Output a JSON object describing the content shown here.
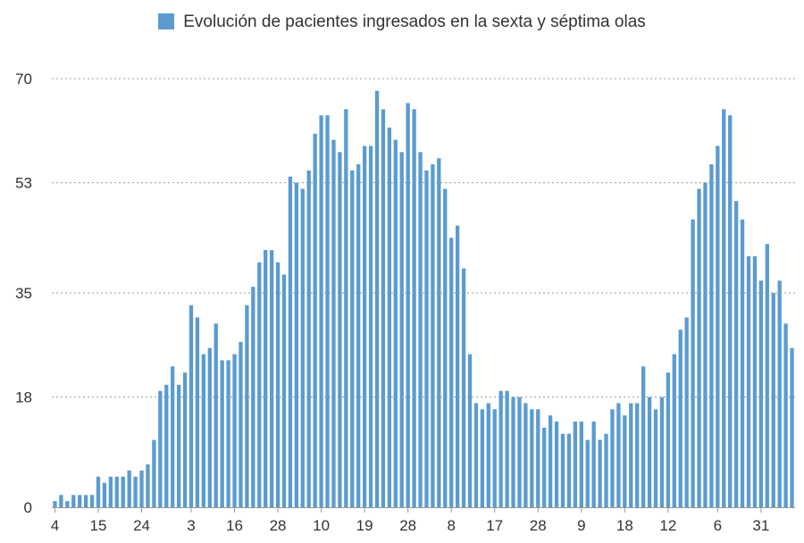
{
  "chart_data": {
    "type": "bar",
    "legend": "Evolución de pacientes ingresados en la sexta y séptima olas",
    "series_color": "#5b9bd0",
    "y_ticks": [
      0,
      18,
      35,
      53,
      70
    ],
    "ylim": [
      0,
      70
    ],
    "x_ticks": [
      {
        "index": 0,
        "label": "4"
      },
      {
        "index": 7,
        "label": "15"
      },
      {
        "index": 14,
        "label": "24"
      },
      {
        "index": 22,
        "label": "3"
      },
      {
        "index": 29,
        "label": "16"
      },
      {
        "index": 36,
        "label": "28"
      },
      {
        "index": 43,
        "label": "10"
      },
      {
        "index": 50,
        "label": "19"
      },
      {
        "index": 57,
        "label": "28"
      },
      {
        "index": 64,
        "label": "8"
      },
      {
        "index": 71,
        "label": "17"
      },
      {
        "index": 78,
        "label": "28"
      },
      {
        "index": 85,
        "label": "9"
      },
      {
        "index": 92,
        "label": "18"
      },
      {
        "index": 99,
        "label": "12"
      },
      {
        "index": 107,
        "label": "6"
      },
      {
        "index": 114,
        "label": "31"
      }
    ],
    "values": [
      1,
      2,
      1,
      2,
      2,
      2,
      2,
      5,
      4,
      5,
      5,
      5,
      6,
      5,
      6,
      7,
      11,
      19,
      20,
      23,
      20,
      22,
      33,
      31,
      25,
      26,
      30,
      24,
      24,
      25,
      27,
      33,
      36,
      40,
      42,
      42,
      40,
      38,
      54,
      53,
      52,
      55,
      61,
      64,
      64,
      60,
      58,
      65,
      55,
      56,
      59,
      59,
      68,
      65,
      62,
      60,
      58,
      66,
      65,
      58,
      55,
      56,
      57,
      52,
      44,
      46,
      39,
      25,
      17,
      16,
      17,
      16,
      19,
      19,
      18,
      18,
      17,
      16,
      16,
      13,
      15,
      14,
      12,
      12,
      14,
      14,
      11,
      14,
      11,
      12,
      16,
      17,
      15,
      17,
      17,
      23,
      18,
      16,
      18,
      22,
      25,
      29,
      31,
      47,
      52,
      53,
      56,
      59,
      65,
      64,
      50,
      47,
      41,
      41,
      37,
      43,
      35,
      37,
      30,
      26
    ]
  }
}
